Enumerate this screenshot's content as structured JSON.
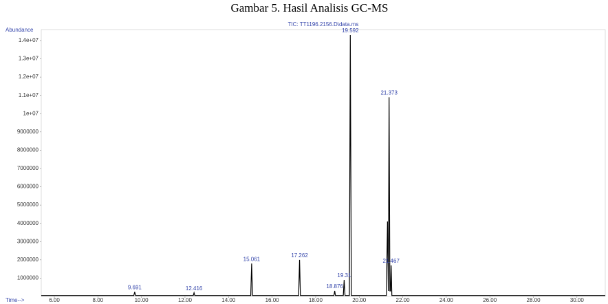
{
  "chart_data": {
    "type": "line",
    "title": "Gambar 5. Hasil Analisis GC-MS",
    "subtitle": "TIC: TT1196.2156.D\\data.ms",
    "ylabel": "Abundance",
    "xlabel": "Time-->",
    "xlim": [
      5.4,
      31.3
    ],
    "ylim": [
      0,
      14600000
    ],
    "xticks": [
      {
        "value": 6,
        "label": "6.00"
      },
      {
        "value": 8,
        "label": "8.00"
      },
      {
        "value": 10,
        "label": "10.00"
      },
      {
        "value": 12,
        "label": "12.00"
      },
      {
        "value": 14,
        "label": "14.00"
      },
      {
        "value": 16,
        "label": "16.00"
      },
      {
        "value": 18,
        "label": "18.00"
      },
      {
        "value": 20,
        "label": "20.00"
      },
      {
        "value": 22,
        "label": "22.00"
      },
      {
        "value": 24,
        "label": "24.00"
      },
      {
        "value": 26,
        "label": "26.00"
      },
      {
        "value": 28,
        "label": "28.00"
      },
      {
        "value": 30,
        "label": "30.00"
      }
    ],
    "yticks": [
      1000000,
      2000000,
      3000000,
      4000000,
      5000000,
      6000000,
      7000000,
      8000000,
      9000000,
      {
        "value": 10000000,
        "label": "1e+07"
      },
      {
        "value": 11000000,
        "label": "1.1e+07"
      },
      {
        "value": 12000000,
        "label": "1.2e+07"
      },
      {
        "value": 13000000,
        "label": "1.3e+07"
      },
      {
        "value": 14000000,
        "label": "1.4e+07"
      }
    ],
    "x": [
      5.4,
      9.65,
      9.691,
      9.73,
      12.38,
      12.416,
      12.45,
      15.02,
      15.061,
      15.1,
      17.22,
      17.262,
      17.3,
      18.84,
      18.876,
      18.91,
      19.27,
      19.31,
      19.35,
      19.55,
      19.592,
      19.64,
      21.25,
      21.3,
      21.34,
      21.373,
      21.41,
      21.44,
      21.467,
      21.5,
      31.3
    ],
    "series": [
      {
        "name": "TIC",
        "color": "#000000",
        "values": [
          50000,
          50000,
          250000,
          50000,
          50000,
          200000,
          50000,
          50000,
          1800000,
          50000,
          50000,
          2000000,
          50000,
          50000,
          300000,
          50000,
          50000,
          900000,
          50000,
          50000,
          14300000,
          50000,
          50000,
          4100000,
          300000,
          10900000,
          300000,
          300000,
          1700000,
          50000,
          50000
        ]
      }
    ],
    "peaks": [
      {
        "x": 9.691,
        "y": 250000
      },
      {
        "x": 12.416,
        "y": 200000
      },
      {
        "x": 15.061,
        "y": 1800000
      },
      {
        "x": 17.262,
        "y": 2000000
      },
      {
        "x": 18.876,
        "y": 300000
      },
      {
        "x": 19.31,
        "y": 900000
      },
      {
        "x": 19.592,
        "y": 14300000
      },
      {
        "x": 21.373,
        "y": 10900000
      },
      {
        "x": 21.467,
        "y": 1700000
      }
    ]
  }
}
